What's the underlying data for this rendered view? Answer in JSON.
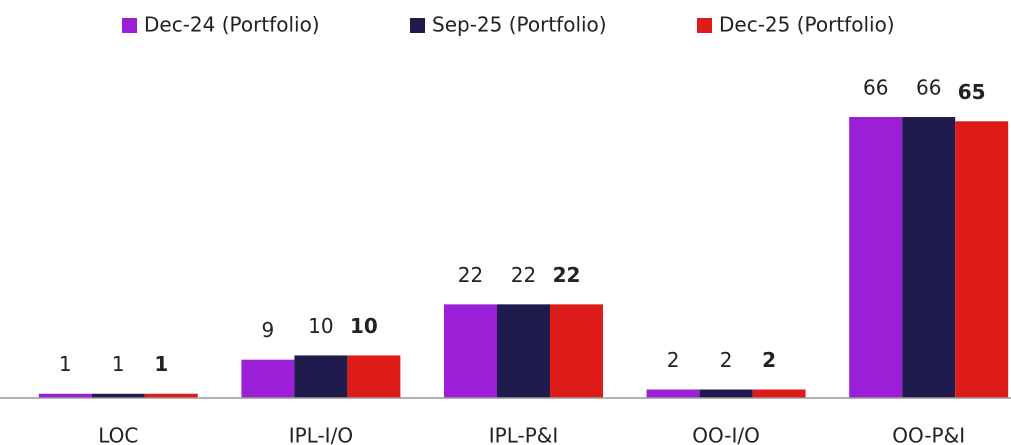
{
  "chart_data": {
    "type": "bar",
    "categories": [
      "LOC",
      "IPL-I/O",
      "IPL-P&I",
      "OO-I/O",
      "OO-P&I"
    ],
    "series": [
      {
        "name": "Dec-24 (Portfolio)",
        "color": "#9b1fd6",
        "values": [
          1,
          9,
          22,
          2,
          66
        ]
      },
      {
        "name": "Sep-25 (Portfolio)",
        "color": "#1f1b4d",
        "values": [
          1,
          10,
          22,
          2,
          66
        ]
      },
      {
        "name": "Dec-25 (Portfolio)",
        "color": "#dd1c1a",
        "values": [
          1,
          10,
          22,
          2,
          65
        ],
        "bold_labels": true
      }
    ],
    "ylim": [
      0,
      70
    ],
    "legend": "top"
  }
}
